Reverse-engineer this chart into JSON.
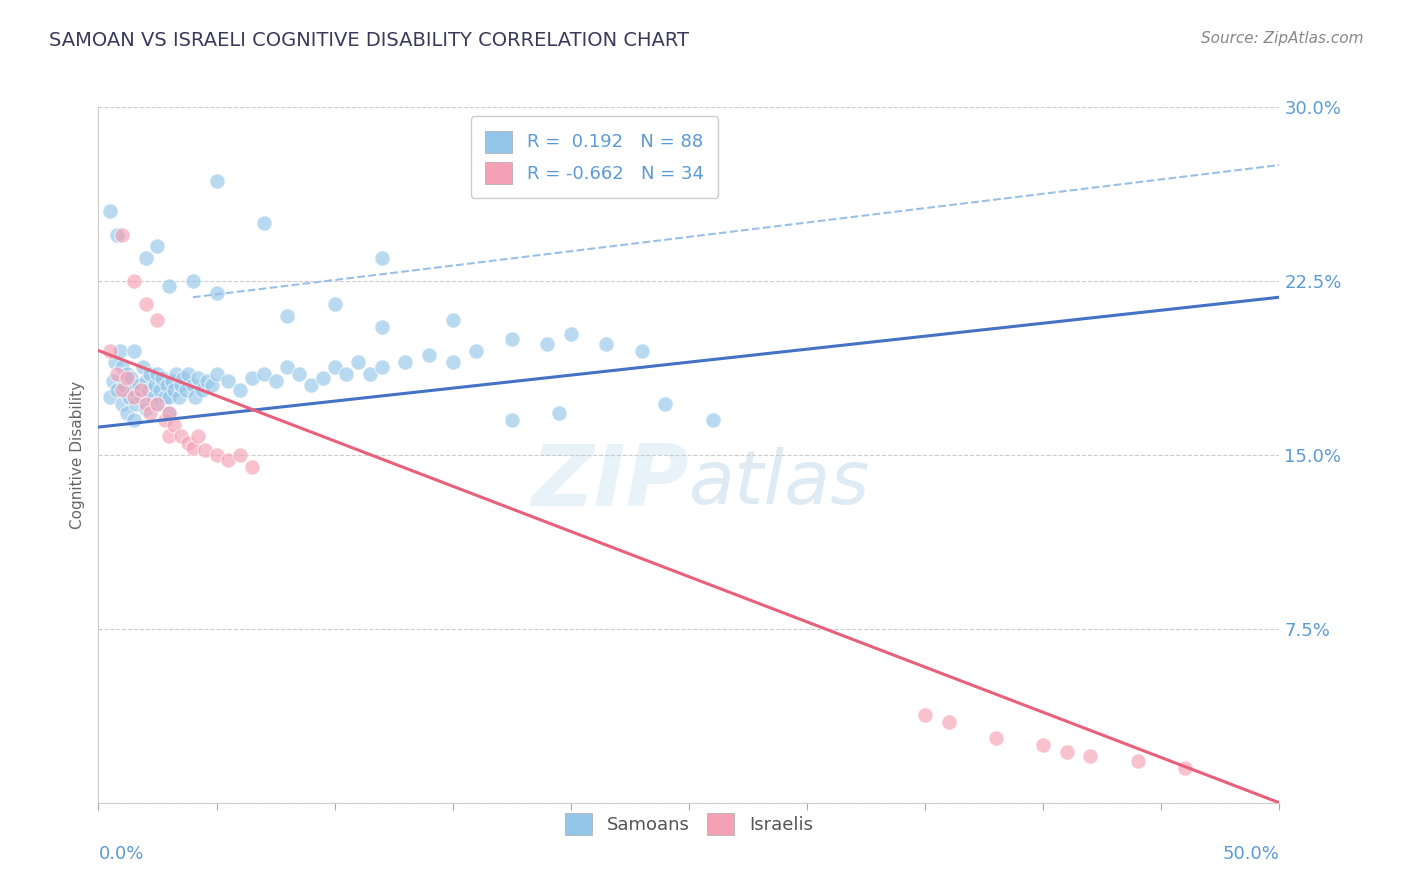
{
  "title": "SAMOAN VS ISRAELI COGNITIVE DISABILITY CORRELATION CHART",
  "source": "Source: ZipAtlas.com",
  "ylabel": "Cognitive Disability",
  "yticks": [
    0.0,
    0.075,
    0.15,
    0.225,
    0.3
  ],
  "ytick_labels": [
    "",
    "7.5%",
    "15.0%",
    "22.5%",
    "30.0%"
  ],
  "xlim": [
    0.0,
    0.5
  ],
  "ylim": [
    0.0,
    0.3
  ],
  "samoan_color": "#92C5E8",
  "israeli_color": "#F4A0B5",
  "samoan_R": 0.192,
  "samoan_N": 88,
  "israeli_R": -0.662,
  "israeli_N": 34,
  "legend_label_samoan": "Samoans",
  "legend_label_israeli": "Israelis",
  "title_color": "#3a3a5c",
  "axis_label_color": "#5b9bd5",
  "grid_color": "#cccccc",
  "samoan_points": [
    [
      0.005,
      0.175
    ],
    [
      0.006,
      0.182
    ],
    [
      0.007,
      0.19
    ],
    [
      0.008,
      0.178
    ],
    [
      0.009,
      0.195
    ],
    [
      0.01,
      0.188
    ],
    [
      0.01,
      0.172
    ],
    [
      0.011,
      0.18
    ],
    [
      0.012,
      0.185
    ],
    [
      0.012,
      0.168
    ],
    [
      0.013,
      0.175
    ],
    [
      0.014,
      0.183
    ],
    [
      0.015,
      0.178
    ],
    [
      0.015,
      0.165
    ],
    [
      0.015,
      0.195
    ],
    [
      0.016,
      0.172
    ],
    [
      0.017,
      0.18
    ],
    [
      0.018,
      0.175
    ],
    [
      0.019,
      0.188
    ],
    [
      0.02,
      0.182
    ],
    [
      0.02,
      0.17
    ],
    [
      0.021,
      0.178
    ],
    [
      0.022,
      0.185
    ],
    [
      0.023,
      0.175
    ],
    [
      0.024,
      0.18
    ],
    [
      0.025,
      0.185
    ],
    [
      0.025,
      0.172
    ],
    [
      0.026,
      0.178
    ],
    [
      0.027,
      0.183
    ],
    [
      0.028,
      0.175
    ],
    [
      0.029,
      0.18
    ],
    [
      0.03,
      0.175
    ],
    [
      0.03,
      0.168
    ],
    [
      0.031,
      0.182
    ],
    [
      0.032,
      0.178
    ],
    [
      0.033,
      0.185
    ],
    [
      0.034,
      0.175
    ],
    [
      0.035,
      0.18
    ],
    [
      0.036,
      0.183
    ],
    [
      0.037,
      0.178
    ],
    [
      0.038,
      0.185
    ],
    [
      0.04,
      0.18
    ],
    [
      0.041,
      0.175
    ],
    [
      0.042,
      0.183
    ],
    [
      0.044,
      0.178
    ],
    [
      0.046,
      0.182
    ],
    [
      0.048,
      0.18
    ],
    [
      0.05,
      0.185
    ],
    [
      0.055,
      0.182
    ],
    [
      0.06,
      0.178
    ],
    [
      0.065,
      0.183
    ],
    [
      0.07,
      0.185
    ],
    [
      0.075,
      0.182
    ],
    [
      0.08,
      0.188
    ],
    [
      0.085,
      0.185
    ],
    [
      0.09,
      0.18
    ],
    [
      0.095,
      0.183
    ],
    [
      0.1,
      0.188
    ],
    [
      0.105,
      0.185
    ],
    [
      0.11,
      0.19
    ],
    [
      0.115,
      0.185
    ],
    [
      0.12,
      0.188
    ],
    [
      0.13,
      0.19
    ],
    [
      0.14,
      0.193
    ],
    [
      0.15,
      0.19
    ],
    [
      0.16,
      0.195
    ],
    [
      0.175,
      0.2
    ],
    [
      0.19,
      0.198
    ],
    [
      0.2,
      0.202
    ],
    [
      0.215,
      0.198
    ],
    [
      0.23,
      0.195
    ],
    [
      0.05,
      0.268
    ],
    [
      0.005,
      0.255
    ],
    [
      0.008,
      0.245
    ],
    [
      0.07,
      0.25
    ],
    [
      0.02,
      0.235
    ],
    [
      0.025,
      0.24
    ],
    [
      0.12,
      0.235
    ],
    [
      0.04,
      0.225
    ],
    [
      0.03,
      0.223
    ],
    [
      0.05,
      0.22
    ],
    [
      0.1,
      0.215
    ],
    [
      0.08,
      0.21
    ],
    [
      0.12,
      0.205
    ],
    [
      0.15,
      0.208
    ],
    [
      0.175,
      0.165
    ],
    [
      0.195,
      0.168
    ],
    [
      0.24,
      0.172
    ],
    [
      0.26,
      0.165
    ]
  ],
  "israeli_points": [
    [
      0.005,
      0.195
    ],
    [
      0.008,
      0.185
    ],
    [
      0.01,
      0.178
    ],
    [
      0.012,
      0.183
    ],
    [
      0.015,
      0.175
    ],
    [
      0.018,
      0.178
    ],
    [
      0.02,
      0.172
    ],
    [
      0.022,
      0.168
    ],
    [
      0.025,
      0.172
    ],
    [
      0.028,
      0.165
    ],
    [
      0.03,
      0.168
    ],
    [
      0.03,
      0.158
    ],
    [
      0.032,
      0.163
    ],
    [
      0.035,
      0.158
    ],
    [
      0.038,
      0.155
    ],
    [
      0.04,
      0.153
    ],
    [
      0.042,
      0.158
    ],
    [
      0.045,
      0.152
    ],
    [
      0.05,
      0.15
    ],
    [
      0.055,
      0.148
    ],
    [
      0.06,
      0.15
    ],
    [
      0.065,
      0.145
    ],
    [
      0.01,
      0.245
    ],
    [
      0.015,
      0.225
    ],
    [
      0.02,
      0.215
    ],
    [
      0.025,
      0.208
    ],
    [
      0.35,
      0.038
    ],
    [
      0.36,
      0.035
    ],
    [
      0.38,
      0.028
    ],
    [
      0.4,
      0.025
    ],
    [
      0.41,
      0.022
    ],
    [
      0.42,
      0.02
    ],
    [
      0.44,
      0.018
    ],
    [
      0.46,
      0.015
    ]
  ],
  "samoan_line": {
    "x_start": 0.0,
    "y_start": 0.162,
    "x_end": 0.5,
    "y_end": 0.218
  },
  "israeli_line": {
    "x_start": 0.0,
    "y_start": 0.195,
    "x_end": 0.5,
    "y_end": 0.0
  },
  "dashed_line": {
    "x_start": 0.04,
    "y_start": 0.218,
    "x_end": 0.5,
    "y_end": 0.275
  }
}
